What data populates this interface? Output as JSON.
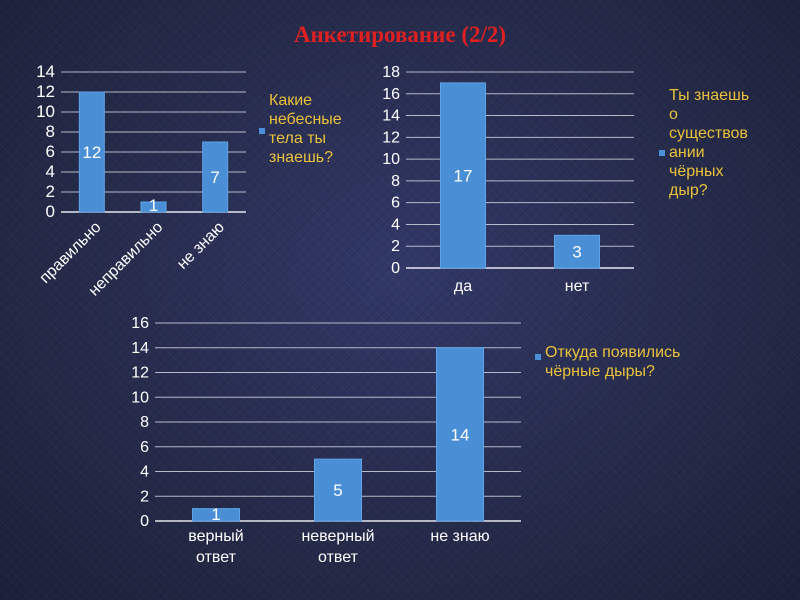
{
  "title": "Анкетирование (2/2)",
  "colors": {
    "bar": "#4a8fd6",
    "bar_edge": "#5fa4e6",
    "axis_text": "#ffffff",
    "legend_text": "#e9c23a",
    "title": "#e02020"
  },
  "chart_data": [
    {
      "type": "bar",
      "categories": [
        "правильно",
        "неправильно",
        "не знаю"
      ],
      "values": [
        12,
        1,
        7
      ],
      "ylim": [
        0,
        14
      ],
      "yticks": [
        0,
        2,
        4,
        6,
        8,
        10,
        12,
        14
      ],
      "grid": true,
      "legend_placement": "right",
      "series": [
        {
          "name": "Какие небесные тела ты знаешь?",
          "values": [
            12,
            1,
            7
          ]
        }
      ]
    },
    {
      "type": "bar",
      "categories": [
        "да",
        "нет"
      ],
      "values": [
        17,
        3
      ],
      "ylim": [
        0,
        18
      ],
      "yticks": [
        0,
        2,
        4,
        6,
        8,
        10,
        12,
        14,
        16,
        18
      ],
      "grid": true,
      "legend_placement": "right",
      "series": [
        {
          "name": "Ты знаешь о существовании чёрных дыр?",
          "values": [
            17,
            3
          ]
        }
      ]
    },
    {
      "type": "bar",
      "categories": [
        "верный ответ",
        "неверный ответ",
        "не знаю"
      ],
      "values": [
        1,
        5,
        14
      ],
      "ylim": [
        0,
        16
      ],
      "yticks": [
        0,
        2,
        4,
        6,
        8,
        10,
        12,
        14,
        16
      ],
      "grid": true,
      "legend_placement": "top-right",
      "series": [
        {
          "name": "Откуда появились чёрные дыры?",
          "values": [
            1,
            5,
            14
          ]
        }
      ]
    }
  ],
  "legends": [
    [
      "Какие",
      "небесные",
      "тела ты",
      "знаешь?"
    ],
    [
      "Ты знаешь",
      "о",
      "существов",
      "ании",
      "чёрных",
      "дыр?"
    ],
    [
      "Откуда появились",
      "чёрные дыры?"
    ]
  ]
}
